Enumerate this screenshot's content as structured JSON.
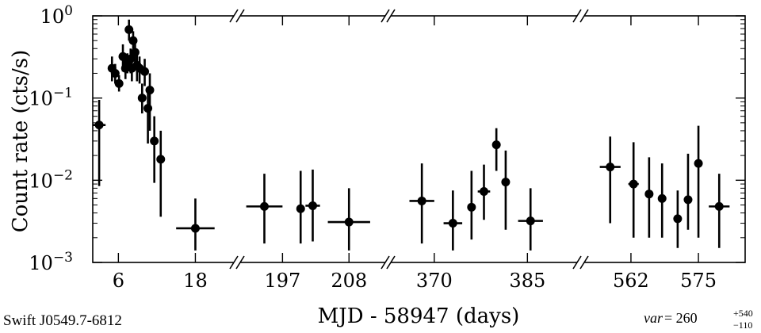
{
  "chart_data": {
    "type": "scatter",
    "ylabel": "Count rate (cts/s)",
    "xlabel": "MJD - 58947 (days)",
    "yscale": "log",
    "ylim": [
      0.001,
      1
    ],
    "y_ticks": [
      "10^0",
      "10^-1",
      "10^-2",
      "10^-3"
    ],
    "source_label": "Swift J0549.7-6812",
    "variability": {
      "prefix": "var",
      "equals": " = 260",
      "upper": "+540",
      "lower": "−110"
    },
    "segments": [
      {
        "xlim": [
          2,
          24
        ],
        "ticks": [
          {
            "value": 6,
            "label": "6"
          },
          {
            "value": 18,
            "label": "18"
          }
        ],
        "points": [
          {
            "x": 3.0,
            "xerr": 1.0,
            "y": 0.047,
            "ylo": 0.0085,
            "yhi": 0.095
          },
          {
            "x": 5.0,
            "xerr": 0.0,
            "y": 0.23,
            "ylo": 0.16,
            "yhi": 0.32
          },
          {
            "x": 5.5,
            "xerr": 0.0,
            "y": 0.2,
            "ylo": 0.15,
            "yhi": 0.26
          },
          {
            "x": 6.1,
            "xerr": 0.0,
            "y": 0.15,
            "ylo": 0.12,
            "yhi": 0.19
          },
          {
            "x": 6.7,
            "xerr": 0.0,
            "y": 0.32,
            "ylo": 0.21,
            "yhi": 0.45
          },
          {
            "x": 7.1,
            "xerr": 0.0,
            "y": 0.23,
            "ylo": 0.17,
            "yhi": 0.3
          },
          {
            "x": 7.4,
            "xerr": 0.0,
            "y": 0.27,
            "ylo": 0.2,
            "yhi": 0.35
          },
          {
            "x": 7.65,
            "xerr": 0.0,
            "y": 0.68,
            "ylo": 0.5,
            "yhi": 0.9
          },
          {
            "x": 7.9,
            "xerr": 0.0,
            "y": 0.3,
            "ylo": 0.2,
            "yhi": 0.4
          },
          {
            "x": 8.1,
            "xerr": 0.0,
            "y": 0.23,
            "ylo": 0.16,
            "yhi": 0.3
          },
          {
            "x": 8.3,
            "xerr": 0.0,
            "y": 0.5,
            "ylo": 0.35,
            "yhi": 0.65
          },
          {
            "x": 8.6,
            "xerr": 0.0,
            "y": 0.36,
            "ylo": 0.25,
            "yhi": 0.48
          },
          {
            "x": 8.9,
            "xerr": 0.0,
            "y": 0.25,
            "ylo": 0.16,
            "yhi": 0.35
          },
          {
            "x": 9.3,
            "xerr": 0.0,
            "y": 0.23,
            "ylo": 0.15,
            "yhi": 0.32
          },
          {
            "x": 9.7,
            "xerr": 0.0,
            "y": 0.1,
            "ylo": 0.065,
            "yhi": 0.15
          },
          {
            "x": 10.1,
            "xerr": 0.0,
            "y": 0.21,
            "ylo": 0.14,
            "yhi": 0.3
          },
          {
            "x": 10.6,
            "xerr": 0.0,
            "y": 0.075,
            "ylo": 0.028,
            "yhi": 0.13
          },
          {
            "x": 10.9,
            "xerr": 0.0,
            "y": 0.125,
            "ylo": 0.04,
            "yhi": 0.2
          },
          {
            "x": 11.6,
            "xerr": 0.0,
            "y": 0.03,
            "ylo": 0.0093,
            "yhi": 0.06
          },
          {
            "x": 12.6,
            "xerr": 0.0,
            "y": 0.018,
            "ylo": 0.0036,
            "yhi": 0.04
          },
          {
            "x": 18.0,
            "xerr": 3.0,
            "y": 0.0026,
            "ylo": 0.0014,
            "yhi": 0.006
          }
        ]
      },
      {
        "xlim": [
          190,
          214
        ],
        "ticks": [
          {
            "value": 197,
            "label": "197"
          },
          {
            "value": 208,
            "label": "208"
          }
        ],
        "points": [
          {
            "x": 194.0,
            "xerr": 3.0,
            "y": 0.0048,
            "ylo": 0.0017,
            "yhi": 0.012
          },
          {
            "x": 200.0,
            "xerr": 0.6,
            "y": 0.0045,
            "ylo": 0.0017,
            "yhi": 0.013
          },
          {
            "x": 202.0,
            "xerr": 1.2,
            "y": 0.0049,
            "ylo": 0.0018,
            "yhi": 0.0135
          },
          {
            "x": 208.0,
            "xerr": 3.5,
            "y": 0.0031,
            "ylo": 0.0014,
            "yhi": 0.008
          }
        ]
      },
      {
        "xlim": [
          363,
          393
        ],
        "ticks": [
          {
            "value": 370,
            "label": "370"
          },
          {
            "value": 385,
            "label": "385"
          }
        ],
        "points": [
          {
            "x": 368.0,
            "xerr": 2.0,
            "y": 0.0056,
            "ylo": 0.0017,
            "yhi": 0.016
          },
          {
            "x": 373.0,
            "xerr": 1.5,
            "y": 0.003,
            "ylo": 0.0014,
            "yhi": 0.0075
          },
          {
            "x": 376.0,
            "xerr": 0.5,
            "y": 0.0047,
            "ylo": 0.0019,
            "yhi": 0.013
          },
          {
            "x": 378.0,
            "xerr": 1.0,
            "y": 0.0073,
            "ylo": 0.0033,
            "yhi": 0.0155
          },
          {
            "x": 380.0,
            "xerr": 0.0,
            "y": 0.027,
            "ylo": 0.013,
            "yhi": 0.043
          },
          {
            "x": 381.5,
            "xerr": 0.5,
            "y": 0.0095,
            "ylo": 0.0025,
            "yhi": 0.023
          },
          {
            "x": 385.5,
            "xerr": 2.0,
            "y": 0.0032,
            "ylo": 0.0014,
            "yhi": 0.008
          }
        ]
      },
      {
        "xlim": [
          553,
          584
        ],
        "ticks": [
          {
            "value": 562,
            "label": "562"
          },
          {
            "value": 575,
            "label": "575"
          }
        ],
        "points": [
          {
            "x": 558.0,
            "xerr": 2.0,
            "y": 0.0145,
            "ylo": 0.003,
            "yhi": 0.034
          },
          {
            "x": 562.5,
            "xerr": 1.0,
            "y": 0.009,
            "ylo": 0.002,
            "yhi": 0.029
          },
          {
            "x": 565.5,
            "xerr": 0.5,
            "y": 0.0068,
            "ylo": 0.002,
            "yhi": 0.019
          },
          {
            "x": 568.0,
            "xerr": 0.6,
            "y": 0.006,
            "ylo": 0.002,
            "yhi": 0.016
          },
          {
            "x": 571.0,
            "xerr": 0.6,
            "y": 0.0034,
            "ylo": 0.0015,
            "yhi": 0.0075
          },
          {
            "x": 573.0,
            "xerr": 0.0,
            "y": 0.0058,
            "ylo": 0.0025,
            "yhi": 0.021
          },
          {
            "x": 575.0,
            "xerr": 0.0,
            "y": 0.016,
            "ylo": 0.002,
            "yhi": 0.046
          },
          {
            "x": 579.0,
            "xerr": 2.0,
            "y": 0.0048,
            "ylo": 0.0015,
            "yhi": 0.012
          }
        ]
      }
    ]
  }
}
